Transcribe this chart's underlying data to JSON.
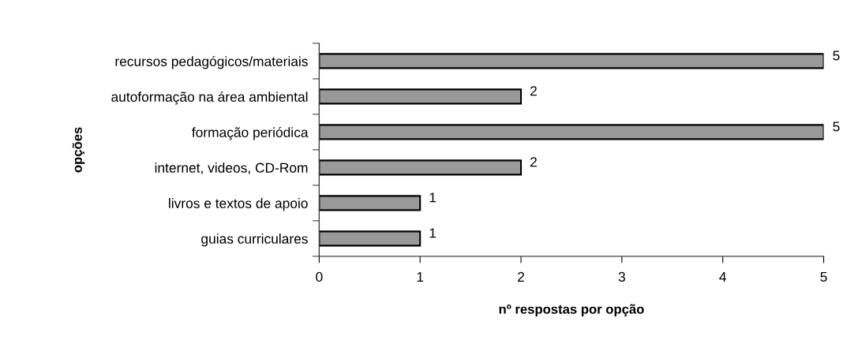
{
  "chart_data": {
    "type": "bar",
    "orientation": "horizontal",
    "categories": [
      "recursos pedagógicos/materiais",
      "autoformação na área ambiental",
      "formação periódica",
      "internet, videos, CD-Rom",
      "livros e textos de apoio",
      "guias curriculares"
    ],
    "values": [
      5,
      2,
      5,
      2,
      1,
      1
    ],
    "color": "#999999",
    "xlabel": "nº respostas por opção",
    "ylabel": "opções",
    "xlim": [
      0,
      5
    ],
    "xticks": [
      0,
      1,
      2,
      3,
      4,
      5
    ],
    "data_labels": true
  }
}
